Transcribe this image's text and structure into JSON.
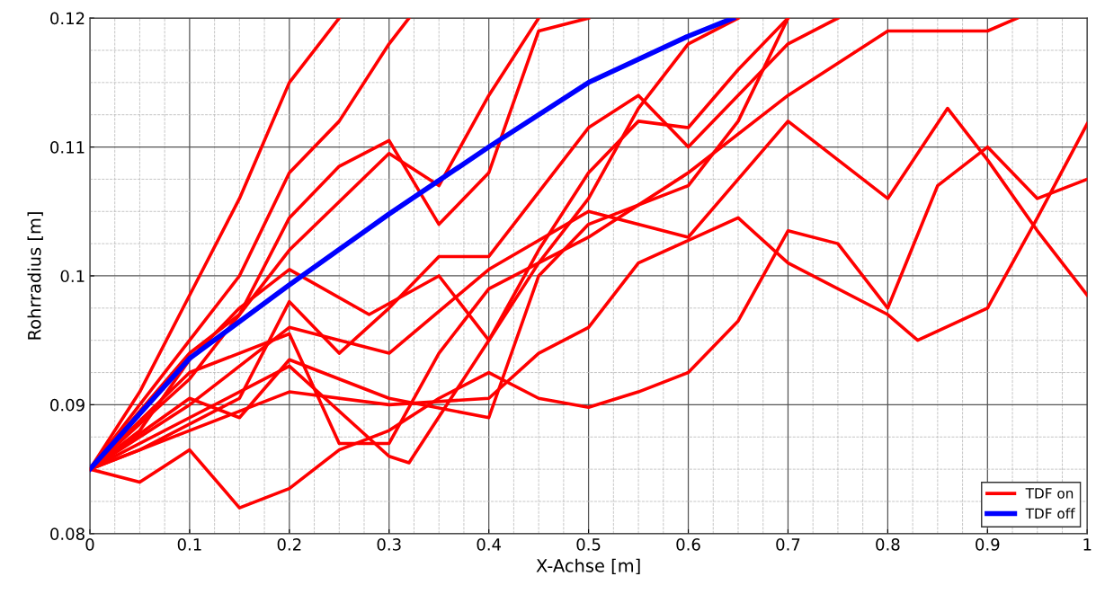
{
  "chart_data": {
    "type": "line",
    "xlabel": "X-Achse [m]",
    "ylabel": "Rohrradius [m]",
    "xlim": [
      0,
      1
    ],
    "ylim": [
      0.08,
      0.12
    ],
    "xticks": [
      0,
      0.1,
      0.2,
      0.3,
      0.4,
      0.5,
      0.6,
      0.7,
      0.8,
      0.9,
      1
    ],
    "yticks": [
      0.08,
      0.09,
      0.1,
      0.11,
      0.12
    ],
    "grid": true,
    "legend": "bottom right",
    "line_style": "solid",
    "marker": "none",
    "series": [
      {
        "name": "TDF on",
        "color": "#ff0000",
        "x": [
          0,
          0.05,
          0.1,
          0.15,
          0.2,
          0.25,
          0.3,
          0.35,
          0.4,
          0.45,
          0.5,
          0.55,
          0.6,
          0.65,
          0.7,
          0.75,
          0.8,
          0.85,
          0.9,
          0.95,
          1.0
        ],
        "values": [
          0.085,
          0.084,
          0.0865,
          0.082,
          0.0835,
          0.0865,
          0.088,
          0.0905,
          0.0925,
          0.0905,
          0.0898,
          0.091,
          0.0925,
          0.0965,
          0.1035,
          0.1025,
          0.0975,
          0.107,
          0.11,
          0.106,
          0.1075
        ]
      },
      {
        "color": "#ff0000",
        "x": [
          0,
          0.1,
          0.2,
          0.3,
          0.4,
          0.45,
          0.5,
          0.55,
          0.65,
          0.7,
          0.8,
          0.83,
          0.9,
          0.95,
          1.0
        ],
        "values": [
          0.085,
          0.088,
          0.091,
          0.09,
          0.0905,
          0.094,
          0.096,
          0.101,
          0.1045,
          0.101,
          0.097,
          0.095,
          0.0975,
          0.1045,
          0.1118
        ]
      },
      {
        "color": "#ff0000",
        "x": [
          0,
          0.1,
          0.2,
          0.3,
          0.4,
          0.5,
          0.6,
          0.7,
          0.8,
          0.86,
          0.9,
          0.95,
          1.0
        ],
        "values": [
          0.085,
          0.09,
          0.096,
          0.094,
          0.1005,
          0.105,
          0.103,
          0.112,
          0.106,
          0.113,
          0.109,
          0.1035,
          0.0985
        ]
      },
      {
        "color": "#ff0000",
        "x": [
          0,
          0.05,
          0.1,
          0.15,
          0.2,
          0.25
        ],
        "values": [
          0.085,
          0.091,
          0.0985,
          0.106,
          0.115,
          0.12
        ]
      },
      {
        "color": "#ff0000",
        "x": [
          0,
          0.1,
          0.15,
          0.2,
          0.25,
          0.3,
          0.32
        ],
        "values": [
          0.085,
          0.095,
          0.1,
          0.108,
          0.112,
          0.118,
          0.12
        ]
      },
      {
        "color": "#ff0000",
        "x": [
          0,
          0.1,
          0.2,
          0.3,
          0.35,
          0.4,
          0.45
        ],
        "values": [
          0.085,
          0.092,
          0.102,
          0.1095,
          0.107,
          0.114,
          0.12
        ]
      },
      {
        "color": "#ff0000",
        "x": [
          0,
          0.1,
          0.2,
          0.3,
          0.32,
          0.4,
          0.45,
          0.5,
          0.55,
          0.6,
          0.65
        ],
        "values": [
          0.085,
          0.089,
          0.093,
          0.086,
          0.0855,
          0.095,
          0.101,
          0.106,
          0.113,
          0.118,
          0.12
        ]
      },
      {
        "color": "#ff0000",
        "x": [
          0,
          0.1,
          0.15,
          0.2,
          0.3,
          0.4,
          0.45,
          0.5,
          0.6,
          0.65,
          0.7
        ],
        "values": [
          0.085,
          0.0905,
          0.089,
          0.0935,
          0.0905,
          0.089,
          0.1,
          0.104,
          0.107,
          0.112,
          0.12
        ]
      },
      {
        "color": "#ff0000",
        "x": [
          0,
          0.05,
          0.15,
          0.2,
          0.25,
          0.3,
          0.35,
          0.4,
          0.5,
          0.55,
          0.6,
          0.7,
          0.75
        ],
        "values": [
          0.085,
          0.0865,
          0.0905,
          0.098,
          0.094,
          0.0975,
          0.1015,
          0.1015,
          0.1115,
          0.114,
          0.11,
          0.118,
          0.12
        ]
      },
      {
        "color": "#ff0000",
        "x": [
          0,
          0.1,
          0.15,
          0.2,
          0.25,
          0.3,
          0.35,
          0.4,
          0.45,
          0.5
        ],
        "values": [
          0.085,
          0.094,
          0.097,
          0.1045,
          0.1085,
          0.1105,
          0.104,
          0.108,
          0.119,
          0.12
        ]
      },
      {
        "color": "#ff0000",
        "x": [
          0,
          0.1,
          0.2,
          0.25,
          0.3,
          0.35,
          0.4,
          0.5,
          0.6,
          0.7,
          0.8,
          0.9,
          0.93
        ],
        "values": [
          0.085,
          0.0925,
          0.0955,
          0.087,
          0.087,
          0.094,
          0.099,
          0.103,
          0.108,
          0.114,
          0.119,
          0.119,
          0.12
        ]
      },
      {
        "color": "#ff0000",
        "x": [
          0,
          0.05,
          0.1,
          0.15,
          0.2,
          0.28,
          0.35,
          0.4,
          0.45,
          0.5,
          0.55,
          0.6,
          0.65,
          0.7
        ],
        "values": [
          0.085,
          0.088,
          0.0935,
          0.0975,
          0.1005,
          0.097,
          0.1,
          0.095,
          0.102,
          0.108,
          0.112,
          0.1115,
          0.116,
          0.12
        ]
      },
      {
        "name": "TDF off",
        "color": "#0000ff",
        "x": [
          0,
          0.1,
          0.2,
          0.3,
          0.4,
          0.5,
          0.6,
          0.645
        ],
        "values": [
          0.085,
          0.0936,
          0.0993,
          0.1048,
          0.11,
          0.115,
          0.1186,
          0.12
        ]
      }
    ]
  }
}
